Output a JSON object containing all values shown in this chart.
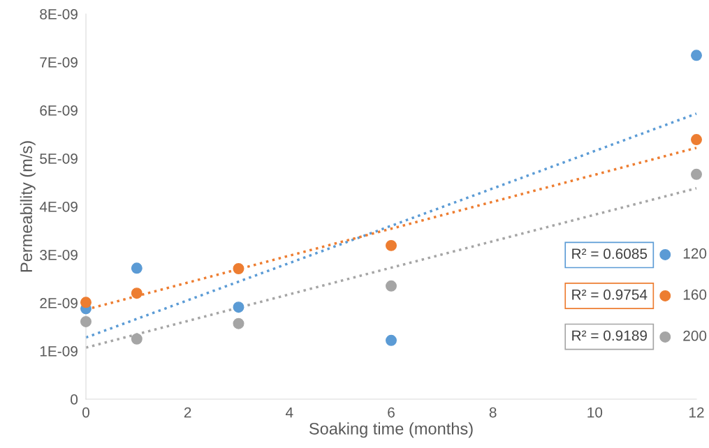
{
  "chart_data": {
    "type": "scatter",
    "xlabel": "Soaking time (months)",
    "ylabel": "Permeability (m/s)",
    "x": [
      0,
      1,
      3,
      6,
      12
    ],
    "series": [
      {
        "name": "120",
        "color": "#5b9bd5",
        "values": [
          1.88e-09,
          2.72e-09,
          1.91e-09,
          1.22e-09,
          7.14e-09
        ]
      },
      {
        "name": "160",
        "color": "#ed7d31",
        "values": [
          2.01e-09,
          2.2e-09,
          2.71e-09,
          3.19e-09,
          5.39e-09
        ]
      },
      {
        "name": "200",
        "color": "#a5a5a5",
        "values": [
          1.61e-09,
          1.25e-09,
          1.57e-09,
          2.35e-09,
          4.67e-09
        ]
      },
      {
        "type": "line",
        "marker": "none",
        "line_style": "dotted",
        "color": "#5b9bd5",
        "x": [
          0,
          6,
          12
        ],
        "values": [
          1.28e-09,
          3.6e-09,
          5.93e-09
        ]
      },
      {
        "type": "line",
        "marker": "none",
        "line_style": "dotted",
        "color": "#ed7d31",
        "x": [
          0,
          6,
          12
        ],
        "values": [
          1.86e-09,
          3.54e-09,
          5.22e-09
        ]
      },
      {
        "type": "line",
        "marker": "none",
        "line_style": "dotted",
        "color": "#a5a5a5",
        "x": [
          0,
          6,
          12
        ],
        "values": [
          1.07e-09,
          2.73e-09,
          4.38e-09
        ]
      }
    ],
    "annotations": [
      "R² = 0.6085",
      "R² = 0.9754",
      "R² = 0.9189"
    ],
    "xlim": [
      0,
      12
    ],
    "xticks": [
      0,
      2,
      4,
      6,
      8,
      10,
      12
    ],
    "ylim": [
      0,
      8e-09
    ],
    "yticks": [
      0,
      {
        "value": 1e-09,
        "label": "1E-09"
      },
      {
        "value": 2e-09,
        "label": "2E-09"
      },
      {
        "value": 3e-09,
        "label": "3E-09"
      },
      {
        "value": 4e-09,
        "label": "4E-09"
      },
      {
        "value": 5e-09,
        "label": "5E-09"
      },
      {
        "value": 6e-09,
        "label": "6E-09"
      },
      {
        "value": 7e-09,
        "label": "7E-09"
      },
      {
        "value": 8e-09,
        "label": "8E-09"
      }
    ],
    "marker": "circle",
    "grid": false,
    "legend": "right"
  }
}
